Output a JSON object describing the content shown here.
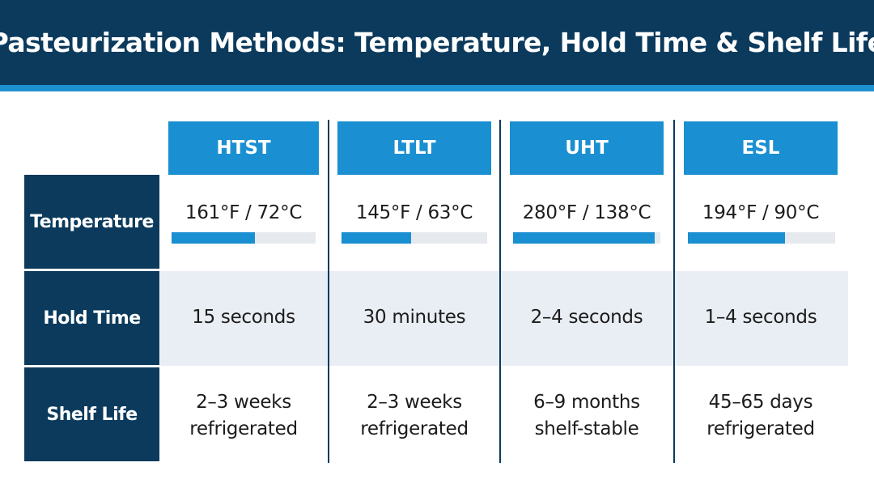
{
  "title": "Pasteurization Methods: Temperature, Hold Time & Shelf Life",
  "colors": {
    "header_bg": "#0b3a5c",
    "accent": "#1a8fd1",
    "stripe": "#1e8fd0",
    "band": "#e9eef4",
    "track": "#e6eaee"
  },
  "rows": {
    "temperature": "Temperature",
    "hold_time": "Hold Time",
    "shelf_life": "Shelf Life"
  },
  "methods": [
    {
      "name": "HTST",
      "temperature": "161°F / 72°C",
      "temp_level": 0.58,
      "hold_time": "15 seconds",
      "shelf_life_line1": "2–3 weeks",
      "shelf_life_line2": "refrigerated"
    },
    {
      "name": "LTLT",
      "temperature": "145°F / 63°C",
      "temp_level": 0.48,
      "hold_time": "30 minutes",
      "shelf_life_line1": "2–3 weeks",
      "shelf_life_line2": "refrigerated"
    },
    {
      "name": "UHT",
      "temperature": "280°F / 138°C",
      "temp_level": 0.96,
      "hold_time": "2–4 seconds",
      "shelf_life_line1": "6–9 months",
      "shelf_life_line2": "shelf-stable"
    },
    {
      "name": "ESL",
      "temperature": "194°F / 90°C",
      "temp_level": 0.66,
      "hold_time": "1–4 seconds",
      "shelf_life_line1": "45–65 days",
      "shelf_life_line2": "refrigerated"
    }
  ]
}
